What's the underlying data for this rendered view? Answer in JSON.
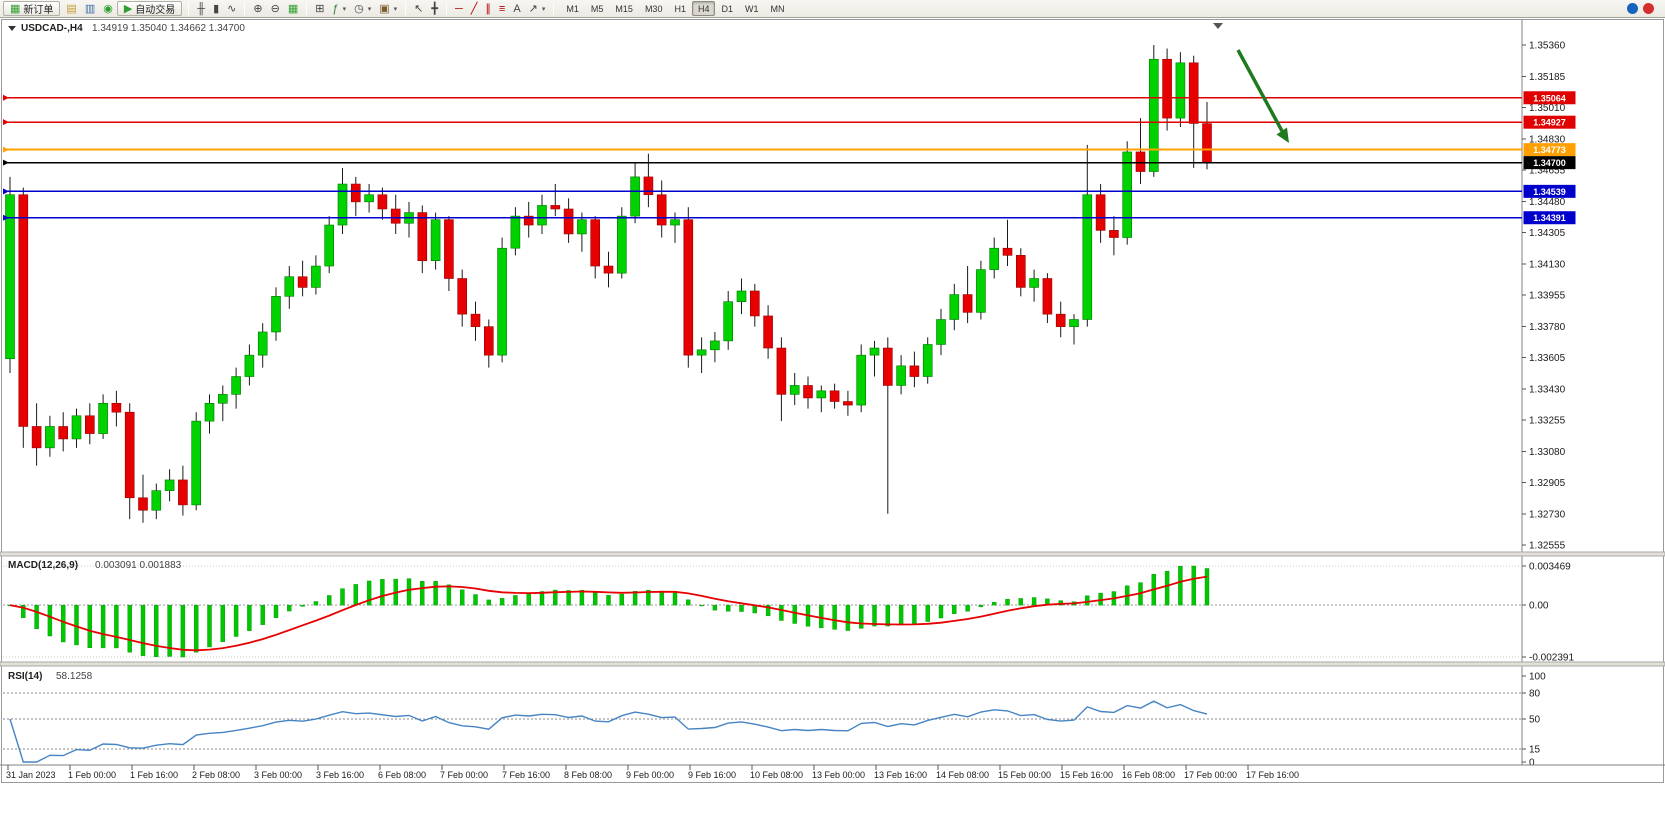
{
  "toolbar": {
    "items": [
      {
        "name": "new-order-button",
        "glyph": "▦",
        "color": "#2e9e2e",
        "label": "新订单"
      },
      {
        "name": "chart-list-button",
        "glyph": "▤",
        "color": "#c79b2e"
      },
      {
        "name": "market-watch-button",
        "glyph": "▥",
        "color": "#3a6ea5"
      },
      {
        "name": "signals-button",
        "glyph": "◉",
        "color": "#2e9e2e"
      },
      {
        "name": "autotrading-button",
        "glyph": "▶",
        "color": "#2e9e2e",
        "label": "自动交易"
      },
      {
        "sep": true
      },
      {
        "name": "bar-chart-button",
        "glyph": "╫",
        "color": "#444444"
      },
      {
        "name": "candlestick-chart-button",
        "glyph": "▮",
        "color": "#444444"
      },
      {
        "name": "line-chart-button",
        "glyph": "∿",
        "color": "#444444"
      },
      {
        "sep": true
      },
      {
        "name": "zoom-in-button",
        "glyph": "⊕",
        "color": "#444444"
      },
      {
        "name": "zoom-out-button",
        "glyph": "⊖",
        "color": "#444444"
      },
      {
        "name": "grid-button",
        "glyph": "▦",
        "color": "#2e9e2e"
      },
      {
        "sep": true
      },
      {
        "name": "tile-windows-button",
        "glyph": "⊞",
        "color": "#444444"
      },
      {
        "name": "indicators-button",
        "glyph": "ƒ",
        "color": "#2e7d32",
        "dropdown": true
      },
      {
        "name": "periods-menu-button",
        "glyph": "◷",
        "color": "#444444",
        "dropdown": true
      },
      {
        "name": "templates-button",
        "glyph": "▣",
        "color": "#7a5c2e",
        "dropdown": true
      },
      {
        "sep": true
      },
      {
        "name": "cursor-button",
        "glyph": "↖",
        "color": "#444444"
      },
      {
        "name": "crosshair-button",
        "glyph": "╋",
        "color": "#444444"
      },
      {
        "sep": true
      },
      {
        "name": "hline-tool-button",
        "glyph": "─",
        "color": "#b00000"
      },
      {
        "name": "trendline-tool-button",
        "glyph": "╱",
        "color": "#b00000"
      },
      {
        "name": "channel-tool-button",
        "glyph": "∥",
        "color": "#b00000"
      },
      {
        "name": "fibonacci-tool-button",
        "glyph": "≡",
        "color": "#b00000"
      },
      {
        "name": "text-tool-button",
        "glyph": "A",
        "color": "#444444"
      },
      {
        "name": "arrows-tool-button",
        "glyph": "↗",
        "color": "#444444",
        "dropdown": true
      },
      {
        "sep": true
      }
    ],
    "timeframes": {
      "options": [
        "M1",
        "M5",
        "M15",
        "M30",
        "H1",
        "H4",
        "D1",
        "W1",
        "MN"
      ],
      "active": "H4"
    },
    "status_icons": [
      {
        "name": "community-status-icon",
        "color": "#1565c0"
      },
      {
        "name": "alert-status-icon",
        "color": "#d32f2f"
      }
    ]
  },
  "chart": {
    "header": {
      "symbol": "USDCAD-,H4",
      "ohlc": "1.34919 1.35040 1.34662 1.34700"
    },
    "price_axis": {
      "top_price": 1.3536,
      "bottom_price": 1.32555,
      "labels": [
        "1.35360",
        "1.35185",
        "1.35010",
        "1.34830",
        "1.34655",
        "1.34480",
        "1.34305",
        "1.34130",
        "1.33955",
        "1.33780",
        "1.33605",
        "1.33430",
        "1.33255",
        "1.33080",
        "1.32905",
        "1.32730",
        "1.32555"
      ]
    },
    "time_axis": {
      "labels": [
        "31 Jan 2023",
        "1 Feb 00:00",
        "1 Feb 16:00",
        "2 Feb 08:00",
        "3 Feb 00:00",
        "3 Feb 16:00",
        "6 Feb 08:00",
        "7 Feb 00:00",
        "7 Feb 16:00",
        "8 Feb 08:00",
        "9 Feb 00:00",
        "9 Feb 16:00",
        "10 Feb 08:00",
        "13 Feb 00:00",
        "13 Feb 16:00",
        "14 Feb 08:00",
        "15 Feb 00:00",
        "15 Feb 16:00",
        "16 Feb 08:00",
        "17 Feb 00:00",
        "17 Feb 16:00"
      ]
    },
    "hlines": [
      {
        "price": 1.35064,
        "label": "1.35064",
        "color": "#e00000",
        "width": 1.3
      },
      {
        "price": 1.34927,
        "label": "1.34927",
        "color": "#e00000",
        "width": 1.3
      },
      {
        "price": 1.34773,
        "label": "1.34773",
        "color": "#ffa000",
        "width": 2,
        "text_color": "#000000"
      },
      {
        "price": 1.347,
        "label": "1.34700",
        "color": "#000000",
        "width": 1.4
      },
      {
        "price": 1.34539,
        "label": "1.34539",
        "color": "#0000cc",
        "width": 1.8
      },
      {
        "price": 1.34391,
        "label": "1.34391",
        "color": "#0000cc",
        "width": 1.8
      }
    ],
    "annotation_arrow": {
      "color": "#1f7a1f"
    },
    "colors": {
      "bull": "#00d200",
      "bull_stroke": "#007700",
      "bear": "#e60000",
      "bear_stroke": "#990000",
      "wick": "#1a1a1a"
    }
  },
  "chart_data": {
    "type": "candlestick",
    "symbol": "USDCAD",
    "period": "H4",
    "y_range": [
      1.32555,
      1.3536
    ],
    "x_range": [
      "31 Jan 2023",
      "17 Feb 16:00"
    ],
    "current_ohlc": {
      "open": 1.34919,
      "high": 1.3504,
      "low": 1.34662,
      "close": 1.347
    },
    "indicators": [
      {
        "name": "MACD",
        "params": [
          12,
          26,
          9
        ],
        "last_values": [
          0.003091,
          0.001883
        ]
      },
      {
        "name": "RSI",
        "params": [
          14
        ],
        "last_value": 58.1258
      }
    ],
    "candles": [
      [
        1.336,
        1.3462,
        1.3352,
        1.3452
      ],
      [
        1.3452,
        1.3456,
        1.331,
        1.3322
      ],
      [
        1.3322,
        1.3335,
        1.33,
        1.331
      ],
      [
        1.331,
        1.3328,
        1.3305,
        1.3322
      ],
      [
        1.3322,
        1.333,
        1.3308,
        1.3315
      ],
      [
        1.3315,
        1.3332,
        1.331,
        1.3328
      ],
      [
        1.3328,
        1.3335,
        1.3312,
        1.3318
      ],
      [
        1.3318,
        1.334,
        1.3315,
        1.3335
      ],
      [
        1.3335,
        1.3342,
        1.3322,
        1.333
      ],
      [
        1.333,
        1.3335,
        1.327,
        1.3282
      ],
      [
        1.3282,
        1.3295,
        1.3268,
        1.3275
      ],
      [
        1.3275,
        1.329,
        1.327,
        1.3286
      ],
      [
        1.3286,
        1.3298,
        1.328,
        1.3292
      ],
      [
        1.3292,
        1.33,
        1.3272,
        1.3278
      ],
      [
        1.3278,
        1.333,
        1.3275,
        1.3325
      ],
      [
        1.3325,
        1.334,
        1.3318,
        1.3335
      ],
      [
        1.3335,
        1.3345,
        1.3325,
        1.334
      ],
      [
        1.334,
        1.3355,
        1.3332,
        1.335
      ],
      [
        1.335,
        1.3368,
        1.3345,
        1.3362
      ],
      [
        1.3362,
        1.338,
        1.3355,
        1.3375
      ],
      [
        1.3375,
        1.34,
        1.337,
        1.3395
      ],
      [
        1.3395,
        1.3412,
        1.3388,
        1.3406
      ],
      [
        1.3406,
        1.3415,
        1.3395,
        1.34
      ],
      [
        1.34,
        1.3418,
        1.3396,
        1.3412
      ],
      [
        1.3412,
        1.344,
        1.3408,
        1.3435
      ],
      [
        1.3435,
        1.3467,
        1.343,
        1.3458
      ],
      [
        1.3458,
        1.3462,
        1.344,
        1.3448
      ],
      [
        1.3448,
        1.3458,
        1.3442,
        1.3452
      ],
      [
        1.3452,
        1.3456,
        1.3438,
        1.3444
      ],
      [
        1.3444,
        1.3452,
        1.343,
        1.3436
      ],
      [
        1.3436,
        1.3448,
        1.3428,
        1.3442
      ],
      [
        1.3442,
        1.3446,
        1.3408,
        1.3415
      ],
      [
        1.3415,
        1.3442,
        1.341,
        1.3438
      ],
      [
        1.3438,
        1.344,
        1.3398,
        1.3405
      ],
      [
        1.3405,
        1.341,
        1.3378,
        1.3385
      ],
      [
        1.3385,
        1.3392,
        1.337,
        1.3378
      ],
      [
        1.3378,
        1.3382,
        1.3355,
        1.3362
      ],
      [
        1.3362,
        1.3428,
        1.3358,
        1.3422
      ],
      [
        1.3422,
        1.3445,
        1.3418,
        1.344
      ],
      [
        1.344,
        1.3448,
        1.3428,
        1.3435
      ],
      [
        1.3435,
        1.3452,
        1.343,
        1.3446
      ],
      [
        1.3446,
        1.3458,
        1.344,
        1.3444
      ],
      [
        1.3444,
        1.345,
        1.3425,
        1.343
      ],
      [
        1.343,
        1.3442,
        1.342,
        1.3438
      ],
      [
        1.3438,
        1.344,
        1.3405,
        1.3412
      ],
      [
        1.3412,
        1.342,
        1.34,
        1.3408
      ],
      [
        1.3408,
        1.3445,
        1.3405,
        1.344
      ],
      [
        1.344,
        1.347,
        1.3436,
        1.3462
      ],
      [
        1.3462,
        1.3475,
        1.3445,
        1.3452
      ],
      [
        1.3452,
        1.346,
        1.3428,
        1.3435
      ],
      [
        1.3435,
        1.3442,
        1.3425,
        1.3438
      ],
      [
        1.3438,
        1.3445,
        1.3355,
        1.3362
      ],
      [
        1.3362,
        1.3372,
        1.3352,
        1.3365
      ],
      [
        1.3365,
        1.3375,
        1.3358,
        1.337
      ],
      [
        1.337,
        1.3398,
        1.3365,
        1.3392
      ],
      [
        1.3392,
        1.3405,
        1.3385,
        1.3398
      ],
      [
        1.3398,
        1.3402,
        1.3378,
        1.3384
      ],
      [
        1.3384,
        1.339,
        1.336,
        1.3366
      ],
      [
        1.3366,
        1.3372,
        1.3325,
        1.334
      ],
      [
        1.334,
        1.3352,
        1.3334,
        1.3345
      ],
      [
        1.3345,
        1.335,
        1.3332,
        1.3338
      ],
      [
        1.3338,
        1.3345,
        1.333,
        1.3342
      ],
      [
        1.3342,
        1.3346,
        1.3332,
        1.3336
      ],
      [
        1.3336,
        1.3342,
        1.3328,
        1.3334
      ],
      [
        1.3334,
        1.3368,
        1.333,
        1.3362
      ],
      [
        1.3362,
        1.337,
        1.335,
        1.3366
      ],
      [
        1.3366,
        1.3372,
        1.3273,
        1.3345
      ],
      [
        1.3345,
        1.3362,
        1.334,
        1.3356
      ],
      [
        1.3356,
        1.3364,
        1.3344,
        1.335
      ],
      [
        1.335,
        1.3372,
        1.3346,
        1.3368
      ],
      [
        1.3368,
        1.3388,
        1.3362,
        1.3382
      ],
      [
        1.3382,
        1.3402,
        1.3376,
        1.3396
      ],
      [
        1.3396,
        1.3412,
        1.338,
        1.3386
      ],
      [
        1.3386,
        1.3415,
        1.3382,
        1.341
      ],
      [
        1.341,
        1.3428,
        1.3405,
        1.3422
      ],
      [
        1.3422,
        1.3438,
        1.3412,
        1.3418
      ],
      [
        1.3418,
        1.3422,
        1.3395,
        1.34
      ],
      [
        1.34,
        1.341,
        1.3392,
        1.3405
      ],
      [
        1.3405,
        1.3408,
        1.338,
        1.3385
      ],
      [
        1.3385,
        1.3392,
        1.3372,
        1.3378
      ],
      [
        1.3378,
        1.3385,
        1.3368,
        1.3382
      ],
      [
        1.3382,
        1.348,
        1.3378,
        1.3452
      ],
      [
        1.3452,
        1.3458,
        1.3425,
        1.3432
      ],
      [
        1.3432,
        1.344,
        1.3418,
        1.3428
      ],
      [
        1.3428,
        1.3482,
        1.3424,
        1.3476
      ],
      [
        1.3476,
        1.3495,
        1.3458,
        1.3465
      ],
      [
        1.3465,
        1.3536,
        1.3462,
        1.3528
      ],
      [
        1.3528,
        1.3534,
        1.3488,
        1.3495
      ],
      [
        1.3495,
        1.3532,
        1.349,
        1.3526
      ],
      [
        1.3526,
        1.353,
        1.3467,
        1.3492
      ],
      [
        1.34919,
        1.3504,
        1.34662,
        1.347
      ]
    ]
  },
  "macd": {
    "title": "MACD(12,26,9)",
    "values_text": "0.003091 0.001883",
    "axis_labels": [
      "0.003469",
      "0.00",
      "-0.002391"
    ],
    "params": [
      12,
      26,
      9
    ],
    "histogram_color": "#00c800",
    "histogram_stroke": "#009000",
    "signal_color": "#e60000"
  },
  "rsi": {
    "title": "RSI(14)",
    "value_text": "58.1258",
    "axis_labels": [
      "100",
      "80",
      "50",
      "15",
      "0"
    ],
    "levels": [
      80,
      50,
      15
    ],
    "period": 14,
    "line_color": "#4684c4"
  }
}
